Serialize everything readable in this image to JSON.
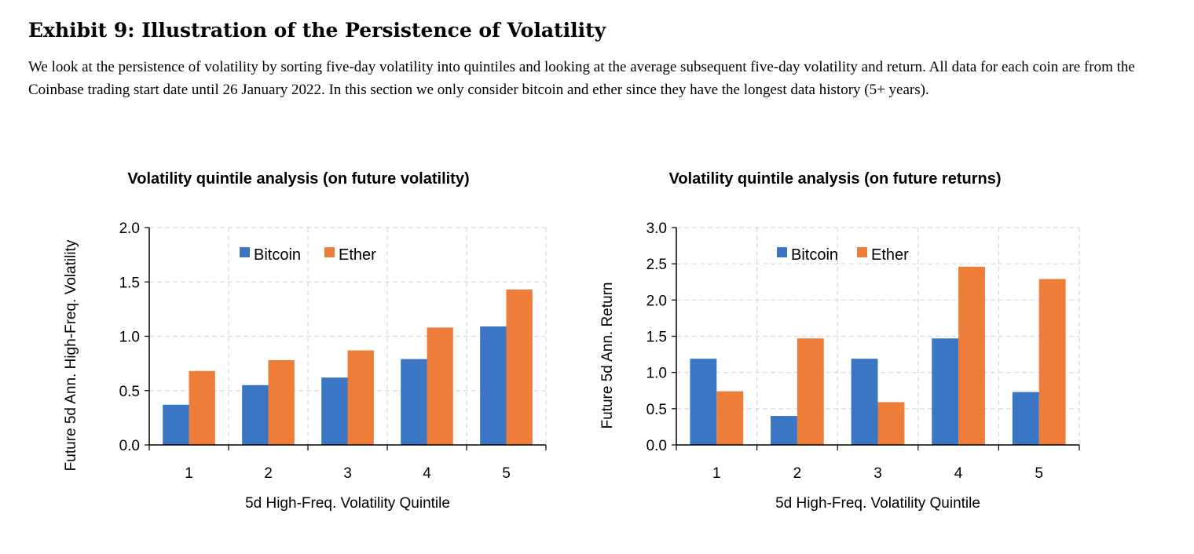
{
  "exhibit": {
    "title": "Exhibit 9: Illustration of the Persistence of Volatility",
    "description": "We look at the persistence of volatility by sorting five-day volatility into quintiles and looking at the average subsequent five-day volatility and return. All data for each coin are from the Coinbase trading start date until 26 January 2022. In this section we only consider bitcoin and ether since they have the longest data history (5+ years)."
  },
  "colors": {
    "bitcoin": "#3a76c4",
    "ether": "#ef7d3a",
    "grid": "#d9d9d9",
    "axis": "#000000"
  },
  "chart_data": [
    {
      "type": "bar",
      "title": "Volatility quintile analysis (on future volatility)",
      "xlabel": "5d High-Freq. Volatility Quintile",
      "ylabel": "Future 5d Ann. High-Freq. Volatility",
      "categories": [
        "1",
        "2",
        "3",
        "4",
        "5"
      ],
      "yticks": [
        "0.0",
        "0.5",
        "1.0",
        "1.5",
        "2.0"
      ],
      "ylim": [
        0,
        2.0
      ],
      "grid": true,
      "legend": "top-center",
      "series": [
        {
          "name": "Bitcoin",
          "values": [
            0.37,
            0.55,
            0.62,
            0.79,
            1.09
          ]
        },
        {
          "name": "Ether",
          "values": [
            0.68,
            0.78,
            0.87,
            1.08,
            1.43
          ]
        }
      ]
    },
    {
      "type": "bar",
      "title": "Volatility quintile analysis (on future returns)",
      "xlabel": "5d High-Freq. Volatility Quintile",
      "ylabel": "Future 5d Ann. Return",
      "categories": [
        "1",
        "2",
        "3",
        "4",
        "5"
      ],
      "yticks": [
        "0.0",
        "0.5",
        "1.0",
        "1.5",
        "2.0",
        "2.5",
        "3.0"
      ],
      "ylim": [
        0,
        3.0
      ],
      "grid": true,
      "legend": "top-right",
      "series": [
        {
          "name": "Bitcoin",
          "values": [
            1.19,
            0.4,
            1.19,
            1.47,
            0.73
          ]
        },
        {
          "name": "Ether",
          "values": [
            0.74,
            1.47,
            0.59,
            2.46,
            2.29
          ]
        }
      ]
    }
  ]
}
